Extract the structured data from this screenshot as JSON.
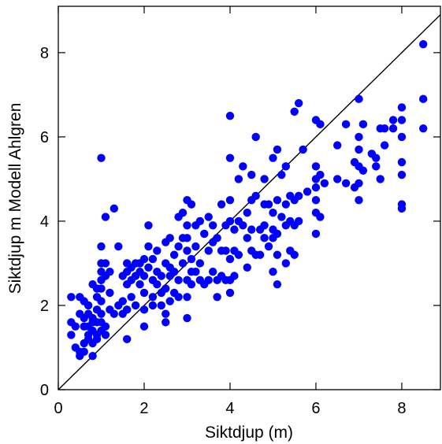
{
  "chart_data": {
    "type": "scatter",
    "title": "",
    "xlabel": "Siktdjup (m)",
    "ylabel": "Siktdjup m Modell Ahlgren",
    "xlim": [
      0,
      8.9
    ],
    "ylim": [
      0,
      9.1
    ],
    "xticks": [
      0,
      2,
      4,
      6,
      8
    ],
    "yticks": [
      0,
      2,
      4,
      6,
      8
    ],
    "x_tick_labels": [
      "0",
      "2",
      "4",
      "6",
      "8"
    ],
    "y_tick_labels": [
      "0",
      "2",
      "4",
      "6",
      "8"
    ],
    "grid": false,
    "reference_line": {
      "from": [
        0,
        0
      ],
      "to": [
        9,
        9
      ]
    },
    "marker_color": "#0000ff",
    "line_color": "#000000",
    "series": [
      {
        "x": [
          0.3,
          0.3,
          0.3,
          0.4,
          0.4,
          0.5,
          0.5,
          0.5,
          0.5,
          0.6,
          0.6,
          0.6,
          0.6,
          0.6,
          0.7,
          0.7,
          0.7,
          0.7,
          0.7,
          0.8,
          0.8,
          0.8,
          0.8,
          0.8,
          0.8,
          0.9,
          0.9,
          0.9,
          0.9,
          0.9,
          0.9,
          1.0,
          1.0,
          1.0,
          1.0,
          1.0,
          1.0,
          1.0,
          1.0,
          1.0,
          1.0,
          1.1,
          1.1,
          1.1,
          1.1,
          1.1,
          1.2,
          1.2,
          1.2,
          1.3,
          1.3,
          1.4,
          1.4,
          1.5,
          1.5,
          1.5,
          1.6,
          1.6,
          1.6,
          1.6,
          1.6,
          1.7,
          1.7,
          1.7,
          1.8,
          1.8,
          1.8,
          1.9,
          1.9,
          1.9,
          2.0,
          2.0,
          2.0,
          2.0,
          2.0,
          2.1,
          2.1,
          2.1,
          2.2,
          2.2,
          2.2,
          2.2,
          2.3,
          2.3,
          2.3,
          2.4,
          2.4,
          2.4,
          2.5,
          2.5,
          2.5,
          2.5,
          2.5,
          2.6,
          2.6,
          2.6,
          2.6,
          2.7,
          2.7,
          2.7,
          2.8,
          2.8,
          2.8,
          2.8,
          2.9,
          2.9,
          2.9,
          3.0,
          3.0,
          3.0,
          3.0,
          3.0,
          3.0,
          3.0,
          3.1,
          3.1,
          3.1,
          3.1,
          3.2,
          3.2,
          3.2,
          3.3,
          3.3,
          3.3,
          3.4,
          3.4,
          3.5,
          3.5,
          3.5,
          3.6,
          3.6,
          3.6,
          3.7,
          3.7,
          3.7,
          3.8,
          3.8,
          3.8,
          3.9,
          3.9,
          3.9,
          4.0,
          4.0,
          4.0,
          4.0,
          4.0,
          4.0,
          4.0,
          4.1,
          4.1,
          4.1,
          4.2,
          4.2,
          4.2,
          4.3,
          4.3,
          4.4,
          4.4,
          4.4,
          4.5,
          4.5,
          4.5,
          4.5,
          4.6,
          4.6,
          4.6,
          4.7,
          4.7,
          4.8,
          4.8,
          4.8,
          4.8,
          4.9,
          4.9,
          5.0,
          5.0,
          5.0,
          5.0,
          5.0,
          5.1,
          5.1,
          5.1,
          5.1,
          5.1,
          5.2,
          5.2,
          5.3,
          5.3,
          5.3,
          5.3,
          5.4,
          5.4,
          5.4,
          5.5,
          5.5,
          5.5,
          5.5,
          5.6,
          5.6,
          5.6,
          5.7,
          5.8,
          6.0,
          6.0,
          6.0,
          6.0,
          6.0,
          6.0,
          6.0,
          6.1,
          6.1,
          6.1,
          6.2,
          6.5,
          6.5,
          6.7,
          6.7,
          6.9,
          6.9,
          7.0,
          7.0,
          7.0,
          7.0,
          7.0,
          7.0,
          7.1,
          7.1,
          7.3,
          7.4,
          7.4,
          7.5,
          7.5,
          7.6,
          7.6,
          7.8,
          7.8,
          8.0,
          8.0,
          8.0,
          8.0,
          8.0,
          8.0,
          8.0,
          8.5,
          8.5,
          8.5
        ],
        "y": [
          1.6,
          1.3,
          2.2,
          1.0,
          1.5,
          2.2,
          1.8,
          0.8,
          0.9,
          1.7,
          1.1,
          1.5,
          2.1,
          0.9,
          1.5,
          1.3,
          1.8,
          1.2,
          2.0,
          1.6,
          1.1,
          0.8,
          1.4,
          1.7,
          2.5,
          1.3,
          1.6,
          1.9,
          2.2,
          2.4,
          1.2,
          5.5,
          3.4,
          3.0,
          2.8,
          2.6,
          2.4,
          2.1,
          1.8,
          1.4,
          1.6,
          4.1,
          3.0,
          2.7,
          1.5,
          1.3,
          2.8,
          2.3,
          1.9,
          4.3,
          1.8,
          3.4,
          2.0,
          1.8,
          2.1,
          2.7,
          1.2,
          1.9,
          2.5,
          2.8,
          3.0,
          2.6,
          2.9,
          2.2,
          2.0,
          2.7,
          3.0,
          2.5,
          2.8,
          3.0,
          1.5,
          1.9,
          2.3,
          2.7,
          3.1,
          3.9,
          3.4,
          2.9,
          2.6,
          2.2,
          2.0,
          3.1,
          3.3,
          2.8,
          2.5,
          2.0,
          2.3,
          2.7,
          3.5,
          3.0,
          2.4,
          1.8,
          1.6,
          2.1,
          2.7,
          2.9,
          3.6,
          3.2,
          2.8,
          2.3,
          4.1,
          3.4,
          2.6,
          2.2,
          4.2,
          3.6,
          3.0,
          4.5,
          3.9,
          3.6,
          3.3,
          2.6,
          2.2,
          1.7,
          4.4,
          3.1,
          2.8,
          2.5,
          3.9,
          3.4,
          2.8,
          4.0,
          3.0,
          2.6,
          3.7,
          2.5,
          4.1,
          3.3,
          2.6,
          3.9,
          3.5,
          2.8,
          3.6,
          2.6,
          2.2,
          4.4,
          3.3,
          2.7,
          3.9,
          3.3,
          2.6,
          6.5,
          5.5,
          4.5,
          4.0,
          3.1,
          2.6,
          2.3,
          3.8,
          3.3,
          2.7,
          5.0,
          4.0,
          3.2,
          5.3,
          3.9,
          4.2,
          3.6,
          2.9,
          5.1,
          4.5,
          3.8,
          3.3,
          6.0,
          4.6,
          3.2,
          3.8,
          3.2,
          5.0,
          4.4,
          3.9,
          3.6,
          4.4,
          3.4,
          5.5,
          4.2,
          3.8,
          3.6,
          2.8,
          5.7,
          4.5,
          3.7,
          3.2,
          2.5,
          5.1,
          4.1,
          5.3,
          4.4,
          3.9,
          3.0,
          4.6,
          4.0,
          3.3,
          6.6,
          4.5,
          3.9,
          3.2,
          6.8,
          4.6,
          4.0,
          5.7,
          4.7,
          6.4,
          5.3,
          5.0,
          4.8,
          4.5,
          4.2,
          3.7,
          6.3,
          5.1,
          4.1,
          4.9,
          5.8,
          5.0,
          6.3,
          4.9,
          5.4,
          4.8,
          6.9,
          6.0,
          5.7,
          5.3,
          4.9,
          4.5,
          6.3,
          5.2,
          5.6,
          5.5,
          5.3,
          6.2,
          5.0,
          6.2,
          5.8,
          6.4,
          6.2,
          6.7,
          6.4,
          6.0,
          5.4,
          5.1,
          4.4,
          4.3,
          8.2,
          6.9,
          6.2
        ]
      }
    ]
  }
}
